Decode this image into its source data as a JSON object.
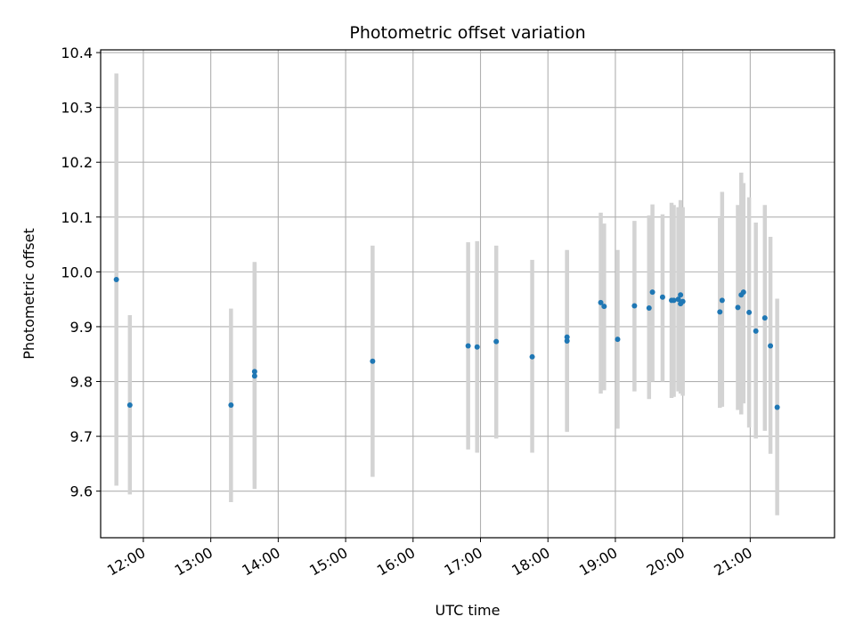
{
  "chart_data": {
    "type": "scatter",
    "title": "Photometric offset variation",
    "xlabel": "UTC time",
    "ylabel": "Photometric offset",
    "x_unit": "UTC time (HH:MM)",
    "xlim": [
      "11:22",
      "22:15"
    ],
    "ylim": [
      9.515,
      10.405
    ],
    "grid": true,
    "x_ticks": [
      "12:00",
      "13:00",
      "14:00",
      "15:00",
      "16:00",
      "17:00",
      "18:00",
      "19:00",
      "20:00",
      "21:00"
    ],
    "y_ticks": [
      9.6,
      9.7,
      9.8,
      9.9,
      10.0,
      10.1,
      10.2,
      10.3,
      10.4
    ],
    "y_tick_labels": [
      "9.6",
      "9.7",
      "9.8",
      "9.9",
      "10.0",
      "10.1",
      "10.2",
      "10.3",
      "10.4"
    ],
    "colors": {
      "point": "#1f77b4",
      "errorbar": "#d3d3d3",
      "grid": "#b0b0b0"
    },
    "points": [
      {
        "t": "11:36",
        "y": 9.986,
        "ylo": 9.61,
        "yhi": 10.362
      },
      {
        "t": "11:48",
        "y": 9.757,
        "ylo": 9.594,
        "yhi": 9.921
      },
      {
        "t": "13:18",
        "y": 9.757,
        "ylo": 9.58,
        "yhi": 9.933
      },
      {
        "t": "13:39",
        "y": 9.818,
        "ylo": 9.62,
        "yhi": 10.018
      },
      {
        "t": "13:39",
        "y": 9.81,
        "ylo": 9.604,
        "yhi": 10.016
      },
      {
        "t": "15:24",
        "y": 9.837,
        "ylo": 9.626,
        "yhi": 10.048
      },
      {
        "t": "16:49",
        "y": 9.865,
        "ylo": 9.676,
        "yhi": 10.054
      },
      {
        "t": "16:57",
        "y": 9.863,
        "ylo": 9.67,
        "yhi": 10.056
      },
      {
        "t": "17:14",
        "y": 9.873,
        "ylo": 9.696,
        "yhi": 10.048
      },
      {
        "t": "17:46",
        "y": 9.845,
        "ylo": 9.67,
        "yhi": 10.022
      },
      {
        "t": "18:17",
        "y": 9.881,
        "ylo": 9.71,
        "yhi": 10.04
      },
      {
        "t": "18:17",
        "y": 9.874,
        "ylo": 9.708,
        "yhi": 10.038
      },
      {
        "t": "18:47",
        "y": 9.944,
        "ylo": 9.778,
        "yhi": 10.108
      },
      {
        "t": "18:50",
        "y": 9.937,
        "ylo": 9.784,
        "yhi": 10.088
      },
      {
        "t": "19:02",
        "y": 9.877,
        "ylo": 9.714,
        "yhi": 10.04
      },
      {
        "t": "19:17",
        "y": 9.938,
        "ylo": 9.782,
        "yhi": 10.093
      },
      {
        "t": "19:30",
        "y": 9.934,
        "ylo": 9.768,
        "yhi": 10.103
      },
      {
        "t": "19:33",
        "y": 9.963,
        "ylo": 9.8,
        "yhi": 10.123
      },
      {
        "t": "19:42",
        "y": 9.954,
        "ylo": 9.8,
        "yhi": 10.105
      },
      {
        "t": "19:50",
        "y": 9.948,
        "ylo": 9.77,
        "yhi": 10.126
      },
      {
        "t": "19:52",
        "y": 9.948,
        "ylo": 9.772,
        "yhi": 10.122
      },
      {
        "t": "19:56",
        "y": 9.95,
        "ylo": 9.782,
        "yhi": 10.118
      },
      {
        "t": "19:58",
        "y": 9.958,
        "ylo": 9.786,
        "yhi": 10.131
      },
      {
        "t": "19:58",
        "y": 9.942,
        "ylo": 9.778,
        "yhi": 10.106
      },
      {
        "t": "20:00",
        "y": 9.946,
        "ylo": 9.774,
        "yhi": 10.118
      },
      {
        "t": "20:33",
        "y": 9.927,
        "ylo": 9.752,
        "yhi": 10.098
      },
      {
        "t": "20:35",
        "y": 9.948,
        "ylo": 9.754,
        "yhi": 10.146
      },
      {
        "t": "20:49",
        "y": 9.935,
        "ylo": 9.748,
        "yhi": 10.122
      },
      {
        "t": "20:52",
        "y": 9.958,
        "ylo": 9.74,
        "yhi": 10.181
      },
      {
        "t": "20:54",
        "y": 9.963,
        "ylo": 9.76,
        "yhi": 10.162
      },
      {
        "t": "20:59",
        "y": 9.926,
        "ylo": 9.716,
        "yhi": 10.136
      },
      {
        "t": "21:05",
        "y": 9.892,
        "ylo": 9.696,
        "yhi": 10.09
      },
      {
        "t": "21:13",
        "y": 9.916,
        "ylo": 9.71,
        "yhi": 10.122
      },
      {
        "t": "21:18",
        "y": 9.865,
        "ylo": 9.668,
        "yhi": 10.064
      },
      {
        "t": "21:24",
        "y": 9.753,
        "ylo": 9.556,
        "yhi": 9.951
      }
    ]
  }
}
